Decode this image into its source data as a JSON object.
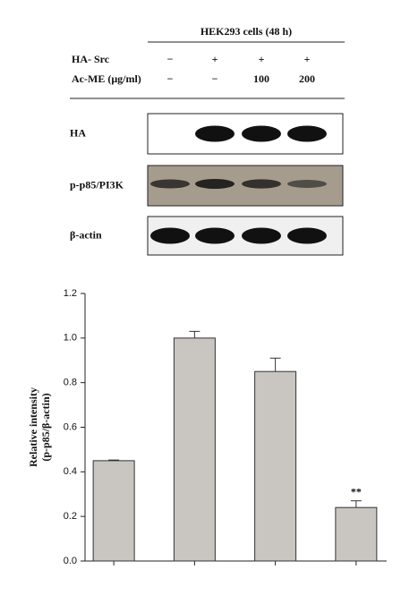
{
  "header": "HEK293 cells (48 h)",
  "treatments": [
    {
      "label": "HA- Src",
      "values": [
        "−",
        "+",
        "+",
        "+"
      ]
    },
    {
      "label": "Ac-ME (μg/ml)",
      "values": [
        "−",
        "−",
        "100",
        "200"
      ]
    }
  ],
  "blots": [
    "HA",
    "p-p85/PI3K",
    "β-actin"
  ],
  "chart_data": {
    "type": "bar",
    "y_label": [
      "Relative intensity",
      "(p-p85/β-actin)"
    ],
    "categories": [
      null,
      null,
      null,
      null
    ],
    "values": [
      0.45,
      1.0,
      0.85,
      0.24
    ],
    "errors": [
      0.003,
      0.03,
      0.06,
      0.03
    ],
    "significance": [
      null,
      null,
      null,
      "**"
    ],
    "color": "#c9c5c1",
    "ylim": [
      0,
      1.2
    ],
    "yticks": [
      {
        "value": 0,
        "label": "0.0"
      },
      0.2,
      0.4,
      0.6,
      0.8,
      {
        "value": 1,
        "label": "1.0"
      },
      1.2
    ]
  }
}
